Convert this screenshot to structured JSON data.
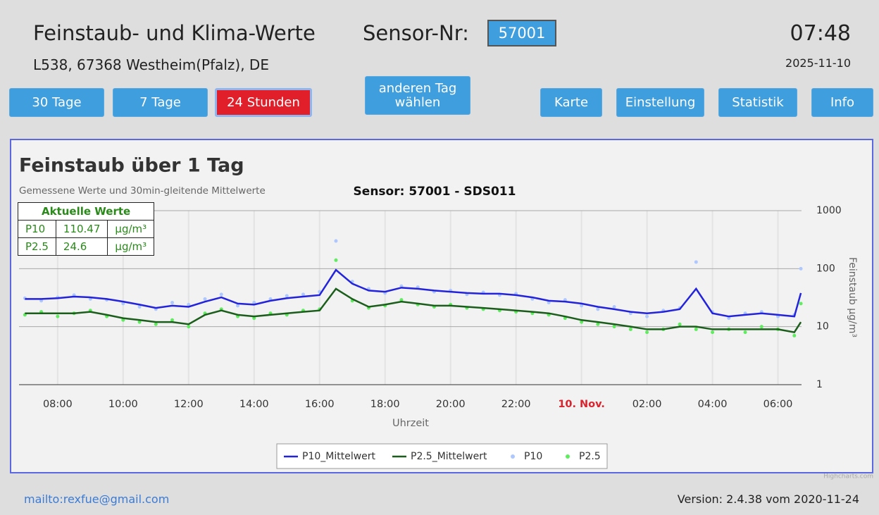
{
  "header": {
    "title": "Feinstaub- und Klima-Werte",
    "sensor_label": "Sensor-Nr:",
    "sensor_id": "57001",
    "address": "L538, 67368 Westheim(Pfalz), DE",
    "time": "07:48",
    "date": "2025-11-10"
  },
  "nav": [
    "30 Tage",
    "7 Tage",
    "24 Stunden",
    "anderen Tag wählen",
    "Karte",
    "Einstellung",
    "Statistik",
    "Info"
  ],
  "current_values": {
    "title": "Aktuelle Werte",
    "rows": [
      [
        "P10",
        "110.47",
        "µg/m³"
      ],
      [
        "P2.5",
        "24.6",
        "µg/m³"
      ]
    ]
  },
  "chart_data": {
    "type": "line",
    "title": "Feinstaub über 1 Tag",
    "subtitle": "Gemessene Werte und 30min-gleitende Mittelwerte",
    "sensor_title": "Sensor: 57001 - SDS011",
    "x_label": "Uhrzeit",
    "y_label": "Feinstaub µg/m³",
    "credit": "Highcharts.com",
    "log_scale": true,
    "grid": true,
    "legend": "bottom",
    "xlim": [
      6.82,
      30.72
    ],
    "xticks": [
      {
        "value": 8,
        "label": "08:00"
      },
      {
        "value": 10,
        "label": "10:00"
      },
      {
        "value": 12,
        "label": "12:00"
      },
      {
        "value": 14,
        "label": "14:00"
      },
      {
        "value": 16,
        "label": "16:00"
      },
      {
        "value": 18,
        "label": "18:00"
      },
      {
        "value": 20,
        "label": "20:00"
      },
      {
        "value": 22,
        "label": "22:00"
      },
      {
        "value": 24,
        "label": "10. Nov.",
        "color": "#d9232e"
      },
      {
        "value": 26,
        "label": "02:00"
      },
      {
        "value": 28,
        "label": "04:00"
      },
      {
        "value": 30,
        "label": "06:00"
      }
    ],
    "ylim": [
      1,
      1000
    ],
    "yticks": [
      1,
      10,
      100,
      1000
    ],
    "x": [
      7,
      7.5,
      8,
      8.5,
      9,
      9.5,
      10,
      10.5,
      11,
      11.5,
      12,
      12.5,
      13,
      13.5,
      14,
      14.5,
      15,
      15.5,
      16,
      16.5,
      17,
      17.5,
      18,
      18.5,
      19,
      19.5,
      20,
      20.5,
      21,
      21.5,
      22,
      22.5,
      23,
      23.5,
      24,
      24.5,
      25,
      25.5,
      26,
      26.5,
      27,
      27.5,
      28,
      28.5,
      29,
      29.5,
      30,
      30.5,
      30.7
    ],
    "series": [
      {
        "name": "P10_Mittelwert",
        "type": "line",
        "color": "#2323dc",
        "values": [
          30,
          30,
          31,
          33,
          32,
          30,
          27,
          24,
          21,
          23,
          22,
          27,
          32,
          25,
          24,
          28,
          31,
          33,
          35,
          95,
          55,
          42,
          40,
          47,
          45,
          42,
          40,
          38,
          37,
          37,
          35,
          32,
          28,
          27,
          25,
          22,
          20,
          18,
          17,
          18,
          20,
          45,
          17,
          15,
          16,
          17,
          16,
          15,
          38
        ]
      },
      {
        "name": "P2.5_Mittelwert",
        "type": "line",
        "color": "#1b5e1b",
        "values": [
          17,
          17,
          17,
          17,
          18,
          16,
          14,
          13,
          12,
          12,
          11,
          16,
          19,
          16,
          15,
          16,
          17,
          18,
          19,
          45,
          30,
          22,
          24,
          27,
          25,
          23,
          23,
          22,
          21,
          20,
          19,
          18,
          17,
          15,
          13,
          12,
          11,
          10,
          9,
          9,
          10,
          10,
          9,
          9,
          9,
          9,
          9,
          8,
          12
        ]
      },
      {
        "name": "P10",
        "type": "scatter",
        "color": "#aec8ff",
        "values": [
          31,
          28,
          32,
          35,
          30,
          29,
          25,
          22,
          20,
          26,
          24,
          30,
          36,
          23,
          26,
          30,
          34,
          36,
          40,
          300,
          60,
          45,
          38,
          50,
          48,
          40,
          42,
          36,
          39,
          35,
          37,
          30,
          26,
          29,
          23,
          20,
          22,
          17,
          15,
          19,
          21,
          130,
          18,
          14,
          17,
          18,
          15,
          16,
          100
        ]
      },
      {
        "name": "P2.5",
        "type": "scatter",
        "color": "#5fec5f",
        "values": [
          16,
          18,
          15,
          17,
          19,
          15,
          13,
          12,
          11,
          13,
          10,
          17,
          20,
          15,
          14,
          17,
          16,
          19,
          20,
          140,
          28,
          21,
          23,
          29,
          24,
          22,
          24,
          21,
          20,
          19,
          18,
          17,
          16,
          14,
          12,
          11,
          10,
          9,
          8,
          9,
          11,
          9,
          8,
          9,
          8,
          10,
          9,
          7,
          25
        ]
      }
    ]
  },
  "footer": {
    "email": "mailto:rexfue@gmail.com",
    "version": "Version: 2.4.38 vom 2020-11-24"
  }
}
